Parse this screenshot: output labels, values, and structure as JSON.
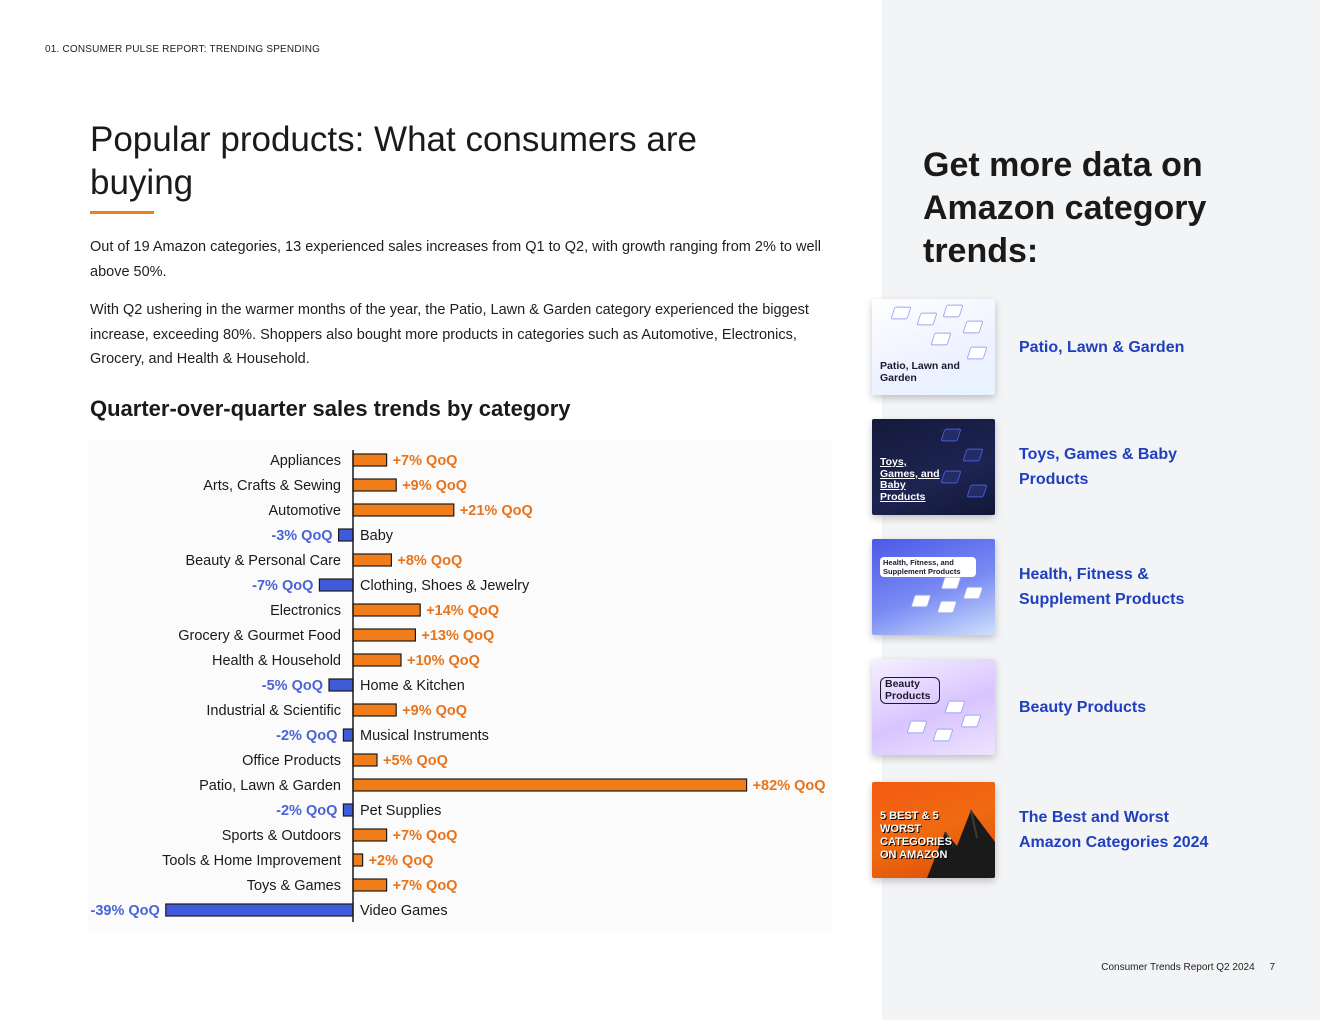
{
  "running_head": "01. CONSUMER PULSE REPORT: TRENDING SPENDING",
  "title": "Popular products: What consumers are buying",
  "paragraphs": [
    "Out of 19 Amazon categories, 13 experienced sales increases from Q1 to Q2, with growth ranging from 2% to well above 50%.",
    "With Q2 ushering in the warmer months of the year, the Patio, Lawn & Garden category experienced the biggest increase, exceeding 80%. Shoppers also bought more products in categories such as Automotive, Electronics, Grocery, and Health & Household."
  ],
  "chart_title": "Quarter-over-quarter sales trends by category",
  "chart_data": {
    "type": "bar",
    "orientation": "horizontal",
    "title": "Quarter-over-quarter sales trends by category",
    "unit": "% QoQ",
    "label_suffix": " QoQ",
    "categories": [
      "Appliances",
      "Arts, Crafts & Sewing",
      "Automotive",
      "Baby",
      "Beauty & Personal Care",
      "Clothing, Shoes & Jewelry",
      "Electronics",
      "Grocery & Gourmet Food",
      "Health & Household",
      "Home & Kitchen",
      "Industrial & Scientific",
      "Musical Instruments",
      "Office Products",
      "Patio, Lawn & Garden",
      "Pet Supplies",
      "Sports & Outdoors",
      "Tools & Home Improvement",
      "Toys & Games",
      "Video Games"
    ],
    "values": [
      7,
      9,
      21,
      -3,
      8,
      -7,
      14,
      13,
      10,
      -5,
      9,
      -2,
      5,
      82,
      -2,
      7,
      2,
      7,
      -39
    ],
    "colors": {
      "positive": "#f07d1a",
      "negative": "#3f5bd9",
      "positive_label": "#e8731a",
      "negative_label": "#4a63d6"
    }
  },
  "sidebar": {
    "heading": "Get more data on Amazon category trends:",
    "cards": [
      {
        "label": "Patio, Lawn & Garden",
        "thumb_title": "Patio, Lawn and Garden"
      },
      {
        "label": "Toys, Games & Baby Products",
        "thumb_title": "Toys, Games, and Baby Products"
      },
      {
        "label": "Health, Fitness & Supplement Products",
        "thumb_title": "Health, Fitness, and Supplement Products"
      },
      {
        "label": "Beauty Products",
        "thumb_title": "Beauty Products"
      },
      {
        "label": "The Best and Worst Amazon Categories 2024",
        "thumb_title": "5 BEST & 5 WORST CATEGORIES ON AMAZON"
      }
    ]
  },
  "footer": {
    "report": "Consumer Trends Report Q2 2024",
    "page": "7"
  },
  "colors": {
    "accent": "#f07d1a",
    "link": "#1f3fbf",
    "panel": "#f3f4f6"
  }
}
